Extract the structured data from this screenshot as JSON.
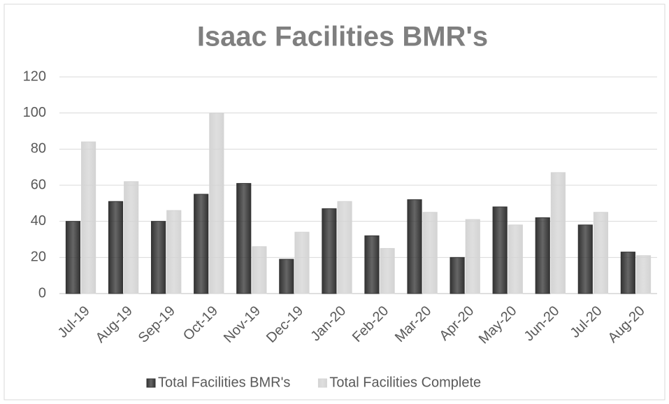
{
  "chart_data": {
    "type": "bar",
    "title": "Isaac Facilities BMR's",
    "categories": [
      "Jul-19",
      "Aug-19",
      "Sep-19",
      "Oct-19",
      "Nov-19",
      "Dec-19",
      "Jan-20",
      "Feb-20",
      "Mar-20",
      "Apr-20",
      "May-20",
      "Jun-20",
      "Jul-20",
      "Aug-20"
    ],
    "series": [
      {
        "name": "Total Facilities BMR's",
        "color": "#333333",
        "values": [
          40,
          51,
          40,
          55,
          61,
          19,
          47,
          32,
          52,
          20,
          48,
          42,
          38,
          23
        ]
      },
      {
        "name": "Total Facilities Complete",
        "color": "#d4d4d4",
        "values": [
          84,
          62,
          46,
          100,
          26,
          34,
          51,
          25,
          45,
          41,
          38,
          67,
          45,
          21
        ]
      }
    ],
    "ylim": [
      0,
      120
    ],
    "yticks": [
      0,
      20,
      40,
      60,
      80,
      100,
      120
    ],
    "grid": true,
    "legend": "bottom"
  }
}
